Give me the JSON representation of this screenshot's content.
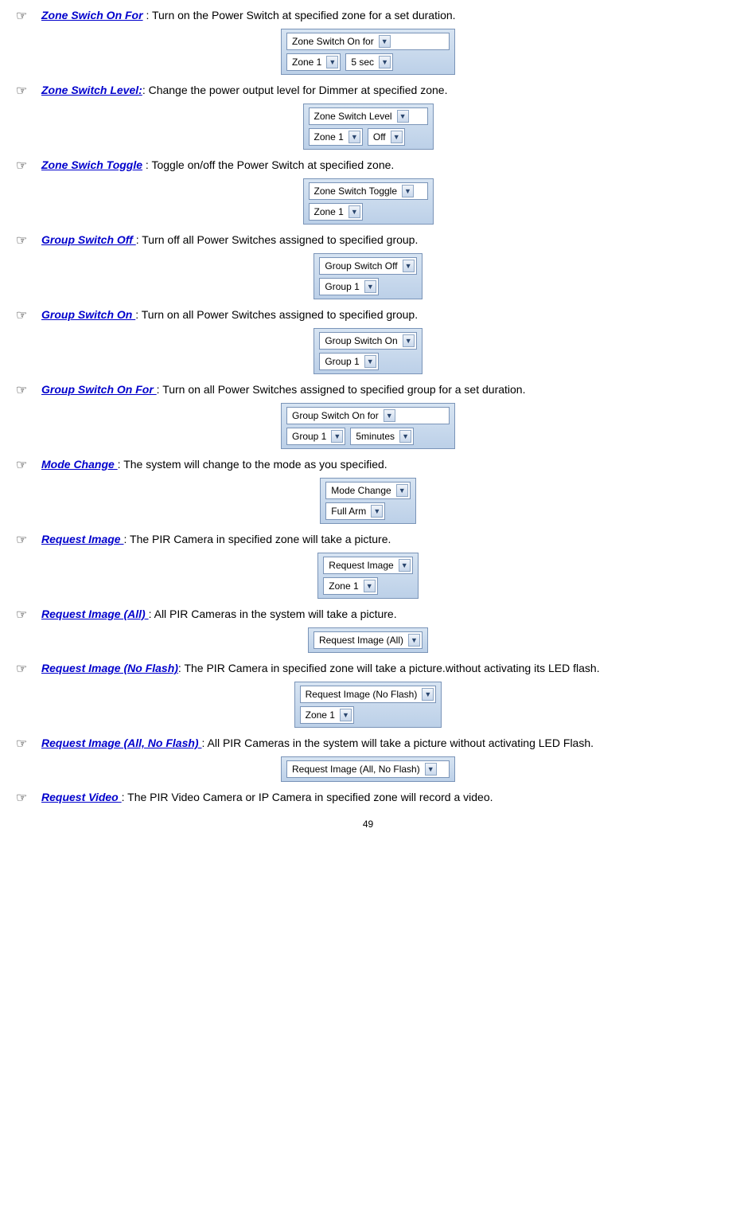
{
  "page_number": "49",
  "colors": {
    "link": "#0000cc",
    "widget_border": "#7a94b8",
    "widget_bg_top": "#d7e4f2",
    "widget_bg_bottom": "#bcd0e8",
    "select_bg": "#ffffff",
    "arrow_fg": "#2a466e"
  },
  "items": [
    {
      "pointer": "☞",
      "label": "Zone Swich On For",
      "desc": " : Turn on the Power Switch at specified zone for a set duration.",
      "widget": {
        "rows": [
          [
            {
              "text": "Zone Switch On for",
              "w": "xwide"
            }
          ],
          [
            {
              "text": "Zone 1"
            },
            {
              "text": "5 sec"
            }
          ]
        ]
      }
    },
    {
      "pointer": "☞",
      "label": "Zone Switch Level:",
      "desc": ": Change the power output level for Dimmer at specified zone.",
      "widget": {
        "rows": [
          [
            {
              "text": "Zone Switch Level",
              "w": "wide"
            }
          ],
          [
            {
              "text": "Zone 1"
            },
            {
              "text": "Off"
            }
          ]
        ]
      }
    },
    {
      "pointer": "☞",
      "label": "Zone Swich Toggle",
      "desc": " : Toggle on/off the Power Switch at specified zone.",
      "widget": {
        "rows": [
          [
            {
              "text": "Zone Switch Toggle",
              "w": "wide"
            }
          ],
          [
            {
              "text": "Zone 1"
            }
          ]
        ]
      }
    },
    {
      "pointer": "☞",
      "label": "Group Switch Off ",
      "desc": ": Turn off all Power Switches assigned to specified group.",
      "widget": {
        "rows": [
          [
            {
              "text": "Group Switch Off"
            }
          ],
          [
            {
              "text": "Group 1"
            }
          ]
        ]
      }
    },
    {
      "pointer": "☞",
      "label": "Group Switch On ",
      "desc": ": Turn on all Power Switches assigned to specified group.",
      "widget": {
        "rows": [
          [
            {
              "text": "Group Switch On"
            }
          ],
          [
            {
              "text": "Group 1"
            }
          ]
        ]
      }
    },
    {
      "pointer": "☞",
      "label": "Group Switch On For ",
      "desc": ": Turn on all Power Switches assigned to specified group for a set duration.",
      "widget": {
        "rows": [
          [
            {
              "text": "Group Switch On for",
              "w": "xwide"
            }
          ],
          [
            {
              "text": "Group 1"
            },
            {
              "text": "5minutes"
            }
          ]
        ]
      }
    },
    {
      "pointer": "☞",
      "label": "Mode Change ",
      "desc": ": The system will change to the mode as you specified.",
      "widget": {
        "rows": [
          [
            {
              "text": "Mode Change"
            }
          ],
          [
            {
              "text": "Full Arm"
            }
          ]
        ]
      }
    },
    {
      "pointer": "☞",
      "label": "Request Image ",
      "desc": ": The PIR Camera in specified zone will take a picture.",
      "widget": {
        "rows": [
          [
            {
              "text": "Request Image"
            }
          ],
          [
            {
              "text": "Zone 1"
            }
          ]
        ]
      }
    },
    {
      "pointer": "☞",
      "label": "Request Image (All) ",
      "desc": ": All PIR Cameras in the system will take a picture.",
      "widget": {
        "rows": [
          [
            {
              "text": "Request Image (All)"
            }
          ]
        ]
      }
    },
    {
      "pointer": "☞",
      "label": "Request Image (No Flash)",
      "desc": ": The PIR Camera in specified zone will take a picture.without activating its LED flash.",
      "widget": {
        "rows": [
          [
            {
              "text": "Request Image (No Flash)",
              "w": "wide"
            }
          ],
          [
            {
              "text": "Zone 1"
            }
          ]
        ]
      }
    },
    {
      "pointer": "☞",
      "label": "Request Image (All, No Flash) ",
      "desc": ": All PIR Cameras in the system will take a picture without activating LED Flash.",
      "widget": {
        "rows": [
          [
            {
              "text": "Request Image (All, No Flash)",
              "w": "xwide"
            }
          ]
        ]
      }
    },
    {
      "pointer": "☞",
      "label": "Request Video ",
      "desc": ": The PIR Video Camera or IP Camera in specified zone will record a video.",
      "widget": null
    }
  ]
}
